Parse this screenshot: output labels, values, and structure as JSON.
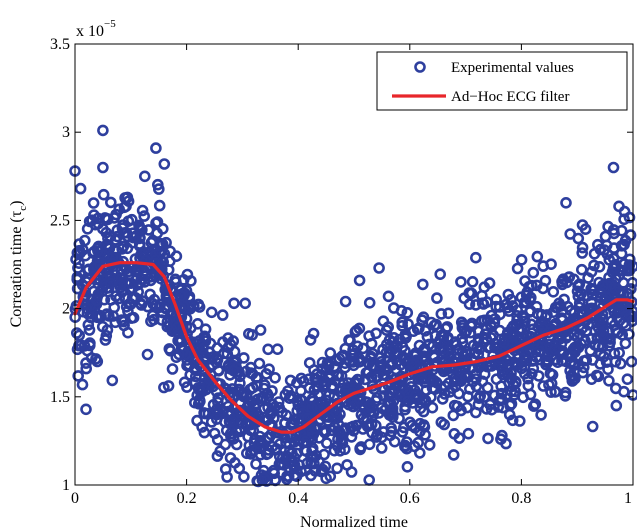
{
  "chart_data": {
    "type": "scatter",
    "title": "",
    "xlabel": "Normalized time",
    "ylabel_main": "Correation time (τ",
    "ylabel_sub": "c",
    "ylabel_close": ")",
    "exponent_prefix": "x 10",
    "exponent_power": "−5",
    "xlim": [
      0,
      1
    ],
    "ylim": [
      1,
      3.5
    ],
    "x_ticks": [
      0,
      0.2,
      0.4,
      0.6,
      0.8,
      1
    ],
    "x_tick_labels": [
      "0",
      "0.2",
      "0.4",
      "0.6",
      "0.8",
      "1"
    ],
    "y_ticks": [
      1,
      1.5,
      2,
      2.5,
      3,
      3.5
    ],
    "y_tick_labels": [
      "1",
      "1.5",
      "2",
      "2.5",
      "3",
      "3.5"
    ],
    "grid": false,
    "legend_position": "top-right",
    "series": [
      {
        "name": "Experimental values",
        "kind": "scatter",
        "color": "#2e3f9e",
        "n_points": 1800,
        "noise_sd": 0.19,
        "highlighted_points": [
          {
            "x": 0.0,
            "y": 2.78
          },
          {
            "x": 0.01,
            "y": 2.68
          },
          {
            "x": 0.05,
            "y": 3.01
          },
          {
            "x": 0.05,
            "y": 2.8
          },
          {
            "x": 0.145,
            "y": 2.91
          },
          {
            "x": 0.16,
            "y": 2.82
          },
          {
            "x": 0.125,
            "y": 2.75
          },
          {
            "x": 0.03,
            "y": 1.72
          },
          {
            "x": 0.04,
            "y": 1.7
          },
          {
            "x": 0.02,
            "y": 1.66
          },
          {
            "x": 0.13,
            "y": 1.74
          },
          {
            "x": 0.285,
            "y": 2.03
          },
          {
            "x": 0.305,
            "y": 2.03
          },
          {
            "x": 0.38,
            "y": 1.05
          },
          {
            "x": 0.27,
            "y": 1.09
          },
          {
            "x": 0.485,
            "y": 2.04
          },
          {
            "x": 0.51,
            "y": 2.16
          },
          {
            "x": 0.545,
            "y": 2.23
          },
          {
            "x": 0.615,
            "y": 1.24
          },
          {
            "x": 0.765,
            "y": 1.28
          },
          {
            "x": 0.965,
            "y": 2.8
          },
          {
            "x": 0.975,
            "y": 2.58
          },
          {
            "x": 0.985,
            "y": 2.55
          },
          {
            "x": 0.915,
            "y": 2.45
          },
          {
            "x": 0.88,
            "y": 2.6
          },
          {
            "x": 0.99,
            "y": 1.6
          },
          {
            "x": 1.0,
            "y": 1.51
          },
          {
            "x": 0.97,
            "y": 1.45
          }
        ]
      },
      {
        "name": "Ad−Hoc ECG filter",
        "kind": "line",
        "color": "#e8262a",
        "x": [
          0,
          0.02,
          0.05,
          0.08,
          0.11,
          0.14,
          0.16,
          0.18,
          0.2,
          0.22,
          0.25,
          0.28,
          0.31,
          0.34,
          0.37,
          0.39,
          0.41,
          0.44,
          0.47,
          0.5,
          0.53,
          0.56,
          0.6,
          0.64,
          0.68,
          0.72,
          0.76,
          0.8,
          0.84,
          0.88,
          0.92,
          0.95,
          0.97,
          0.99,
          1.0
        ],
        "y": [
          1.97,
          2.12,
          2.24,
          2.26,
          2.26,
          2.25,
          2.18,
          2.02,
          1.84,
          1.71,
          1.59,
          1.48,
          1.39,
          1.33,
          1.3,
          1.3,
          1.33,
          1.4,
          1.47,
          1.52,
          1.55,
          1.58,
          1.63,
          1.67,
          1.68,
          1.7,
          1.73,
          1.79,
          1.85,
          1.89,
          1.95,
          2.01,
          2.05,
          2.05,
          2.04
        ]
      }
    ]
  }
}
